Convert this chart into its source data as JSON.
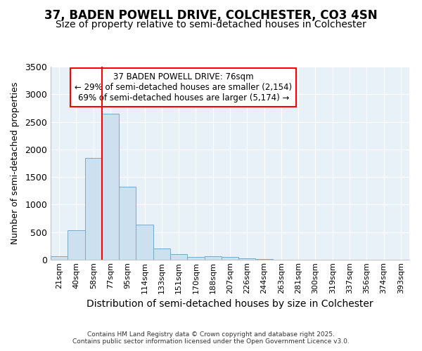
{
  "title": "37, BADEN POWELL DRIVE, COLCHESTER, CO3 4SN",
  "subtitle": "Size of property relative to semi-detached houses in Colchester",
  "xlabel": "Distribution of semi-detached houses by size in Colchester",
  "ylabel": "Number of semi-detached properties",
  "categories": [
    "21sqm",
    "40sqm",
    "58sqm",
    "77sqm",
    "95sqm",
    "114sqm",
    "133sqm",
    "151sqm",
    "170sqm",
    "188sqm",
    "207sqm",
    "226sqm",
    "244sqm",
    "263sqm",
    "281sqm",
    "300sqm",
    "319sqm",
    "337sqm",
    "356sqm",
    "374sqm",
    "393sqm"
  ],
  "values": [
    60,
    530,
    1850,
    2650,
    1320,
    640,
    210,
    105,
    50,
    65,
    45,
    25,
    8,
    3,
    2,
    1,
    0,
    0,
    0,
    0,
    0
  ],
  "bar_color": "#cce0f0",
  "bar_edge_color": "#7aaac8",
  "red_line_x": 3,
  "annotation_title": "37 BADEN POWELL DRIVE: 76sqm",
  "annotation_line2": "← 29% of semi-detached houses are smaller (2,154)",
  "annotation_line3": "69% of semi-detached houses are larger (5,174) →",
  "ylim": [
    0,
    3500
  ],
  "yticks": [
    0,
    500,
    1000,
    1500,
    2000,
    2500,
    3000,
    3500
  ],
  "footer1": "Contains HM Land Registry data © Crown copyright and database right 2025.",
  "footer2": "Contains public sector information licensed under the Open Government Licence v3.0.",
  "bg_color": "#ffffff",
  "plot_bg_color": "#e8f0f8",
  "title_fontsize": 12,
  "subtitle_fontsize": 10,
  "xlabel_fontsize": 10,
  "ylabel_fontsize": 9,
  "xtick_fontsize": 8,
  "ytick_fontsize": 9
}
